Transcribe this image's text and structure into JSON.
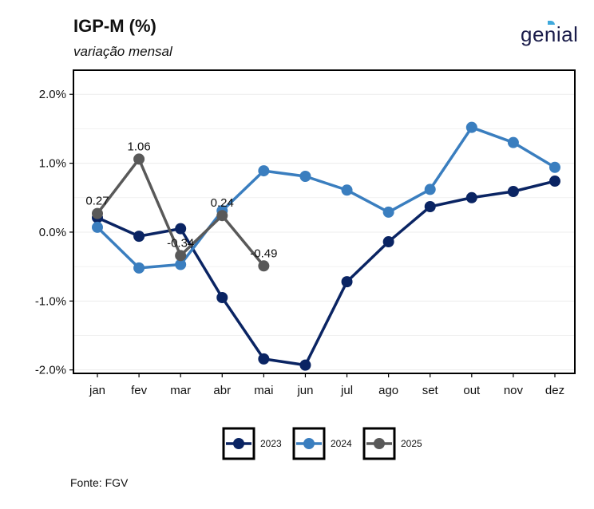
{
  "header": {
    "title": "IGP-M (%)",
    "subtitle": "variação mensal",
    "brand": "genial"
  },
  "footer": {
    "source": "Fonte: FGV"
  },
  "colors": {
    "2023": "#0a2463",
    "2024": "#3a7ebf",
    "2025": "#595959"
  },
  "chart_data": {
    "type": "line",
    "title": "IGP-M (%)",
    "subtitle": "variação mensal",
    "categories": [
      "jan",
      "fev",
      "mar",
      "abr",
      "mai",
      "jun",
      "jul",
      "ago",
      "set",
      "out",
      "nov",
      "dez"
    ],
    "y_ticks": [
      -2.0,
      -1.0,
      0.0,
      1.0,
      2.0
    ],
    "y_tick_labels": [
      "-2.0%",
      "-1.0%",
      "0.0%",
      "1.0%",
      "2.0%"
    ],
    "ylim": [
      -2.05,
      2.35
    ],
    "grid": true,
    "legend_placement": "bottom",
    "series": [
      {
        "name": "2023",
        "color": "#0a2463",
        "values": [
          0.21,
          -0.06,
          0.05,
          -0.95,
          -1.84,
          -1.93,
          -0.72,
          -0.14,
          0.37,
          0.5,
          0.59,
          0.74
        ]
      },
      {
        "name": "2024",
        "color": "#3a7ebf",
        "values": [
          0.07,
          -0.52,
          -0.47,
          0.31,
          0.89,
          0.81,
          0.61,
          0.29,
          0.62,
          1.52,
          1.3,
          0.94
        ]
      },
      {
        "name": "2025",
        "color": "#595959",
        "values": [
          0.27,
          1.06,
          -0.34,
          0.24,
          -0.49,
          null,
          null,
          null,
          null,
          null,
          null,
          null
        ],
        "data_labels": [
          "0.27",
          "1.06",
          "-0.34",
          "0.24",
          "-0.49"
        ]
      }
    ]
  }
}
